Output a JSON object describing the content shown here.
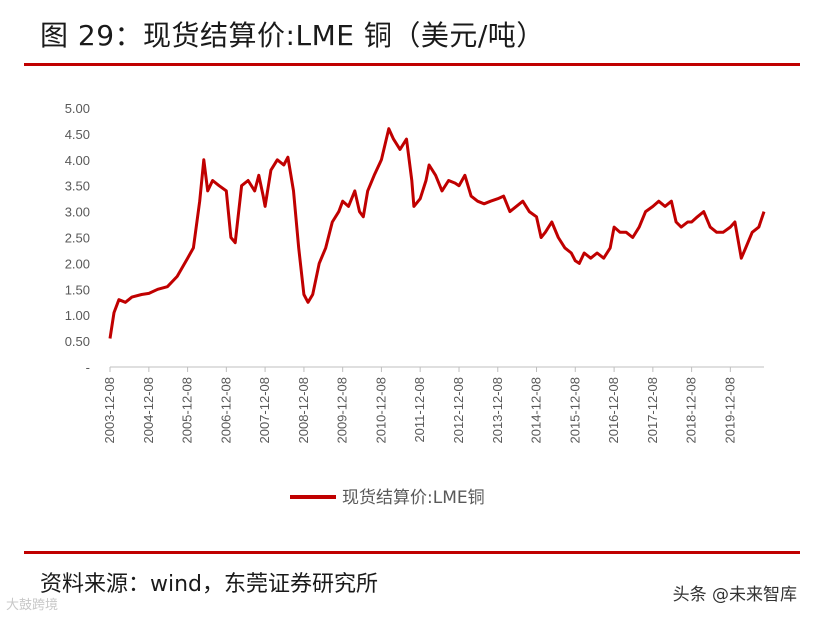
{
  "header": {
    "title": "图 29：现货结算价:LME 铜（美元/吨）"
  },
  "footer": {
    "source": "资料来源：wind，东莞证券研究所"
  },
  "watermarks": {
    "right": "头条 @未来智库",
    "left": "大鼓跨境"
  },
  "colors": {
    "accent": "#c00000",
    "series": "#c00000"
  },
  "chart_data": {
    "type": "line",
    "title": "",
    "xlabel": "",
    "ylabel": "",
    "ylim": [
      0,
      5
    ],
    "y_ticks": [
      "-",
      "0.50",
      "1.00",
      "1.50",
      "2.00",
      "2.50",
      "3.00",
      "3.50",
      "4.00",
      "4.50",
      "5.00"
    ],
    "x_ticks": [
      "2003-12-08",
      "2004-12-08",
      "2005-12-08",
      "2006-12-08",
      "2007-12-08",
      "2008-12-08",
      "2009-12-08",
      "2010-12-08",
      "2011-12-08",
      "2012-12-08",
      "2013-12-08",
      "2014-12-08",
      "2015-12-08",
      "2016-12-08",
      "2017-12-08",
      "2018-12-08",
      "2019-12-08"
    ],
    "legend": "bottom",
    "grid": false,
    "series": [
      {
        "name": "现货结算价:LME铜",
        "points": [
          [
            "2003-12-08",
            0.55
          ],
          [
            "2004-01-15",
            1.05
          ],
          [
            "2004-03-01",
            1.3
          ],
          [
            "2004-05-01",
            1.25
          ],
          [
            "2004-07-01",
            1.35
          ],
          [
            "2004-10-01",
            1.4
          ],
          [
            "2004-12-08",
            1.42
          ],
          [
            "2005-03-01",
            1.5
          ],
          [
            "2005-06-01",
            1.55
          ],
          [
            "2005-09-01",
            1.75
          ],
          [
            "2005-12-08",
            2.1
          ],
          [
            "2006-02-01",
            2.3
          ],
          [
            "2006-04-01",
            3.2
          ],
          [
            "2006-05-10",
            4.0
          ],
          [
            "2006-06-15",
            3.4
          ],
          [
            "2006-08-01",
            3.6
          ],
          [
            "2006-10-01",
            3.5
          ],
          [
            "2006-12-08",
            3.4
          ],
          [
            "2007-01-20",
            2.5
          ],
          [
            "2007-03-01",
            2.4
          ],
          [
            "2007-05-01",
            3.5
          ],
          [
            "2007-07-01",
            3.6
          ],
          [
            "2007-09-01",
            3.4
          ],
          [
            "2007-10-10",
            3.7
          ],
          [
            "2007-11-20",
            3.3
          ],
          [
            "2007-12-08",
            3.1
          ],
          [
            "2008-02-01",
            3.8
          ],
          [
            "2008-04-01",
            4.0
          ],
          [
            "2008-06-01",
            3.9
          ],
          [
            "2008-07-10",
            4.05
          ],
          [
            "2008-09-01",
            3.4
          ],
          [
            "2008-10-20",
            2.3
          ],
          [
            "2008-12-08",
            1.4
          ],
          [
            "2009-01-15",
            1.25
          ],
          [
            "2009-03-01",
            1.4
          ],
          [
            "2009-05-01",
            2.0
          ],
          [
            "2009-07-01",
            2.3
          ],
          [
            "2009-09-01",
            2.8
          ],
          [
            "2009-11-01",
            3.0
          ],
          [
            "2009-12-08",
            3.2
          ],
          [
            "2010-02-01",
            3.1
          ],
          [
            "2010-04-01",
            3.4
          ],
          [
            "2010-05-15",
            3.0
          ],
          [
            "2010-06-20",
            2.9
          ],
          [
            "2010-08-01",
            3.4
          ],
          [
            "2010-10-01",
            3.7
          ],
          [
            "2010-12-08",
            4.0
          ],
          [
            "2011-02-15",
            4.6
          ],
          [
            "2011-04-01",
            4.4
          ],
          [
            "2011-06-01",
            4.2
          ],
          [
            "2011-08-01",
            4.4
          ],
          [
            "2011-09-20",
            3.6
          ],
          [
            "2011-10-10",
            3.1
          ],
          [
            "2011-12-08",
            3.25
          ],
          [
            "2012-02-01",
            3.6
          ],
          [
            "2012-03-01",
            3.9
          ],
          [
            "2012-05-01",
            3.7
          ],
          [
            "2012-07-01",
            3.4
          ],
          [
            "2012-09-01",
            3.6
          ],
          [
            "2012-11-01",
            3.55
          ],
          [
            "2012-12-08",
            3.5
          ],
          [
            "2013-02-01",
            3.7
          ],
          [
            "2013-04-01",
            3.3
          ],
          [
            "2013-06-01",
            3.2
          ],
          [
            "2013-08-01",
            3.15
          ],
          [
            "2013-10-01",
            3.2
          ],
          [
            "2013-12-08",
            3.25
          ],
          [
            "2014-02-01",
            3.3
          ],
          [
            "2014-04-01",
            3.0
          ],
          [
            "2014-06-01",
            3.1
          ],
          [
            "2014-08-01",
            3.2
          ],
          [
            "2014-10-01",
            3.0
          ],
          [
            "2014-12-08",
            2.9
          ],
          [
            "2015-01-20",
            2.5
          ],
          [
            "2015-03-01",
            2.6
          ],
          [
            "2015-05-01",
            2.8
          ],
          [
            "2015-07-01",
            2.5
          ],
          [
            "2015-09-01",
            2.3
          ],
          [
            "2015-11-01",
            2.2
          ],
          [
            "2015-12-08",
            2.05
          ],
          [
            "2016-01-15",
            2.0
          ],
          [
            "2016-03-01",
            2.2
          ],
          [
            "2016-05-01",
            2.1
          ],
          [
            "2016-07-01",
            2.2
          ],
          [
            "2016-09-01",
            2.1
          ],
          [
            "2016-11-01",
            2.3
          ],
          [
            "2016-12-08",
            2.7
          ],
          [
            "2017-02-01",
            2.6
          ],
          [
            "2017-04-01",
            2.6
          ],
          [
            "2017-06-01",
            2.5
          ],
          [
            "2017-08-01",
            2.7
          ],
          [
            "2017-10-01",
            3.0
          ],
          [
            "2017-12-08",
            3.1
          ],
          [
            "2018-02-01",
            3.2
          ],
          [
            "2018-04-01",
            3.1
          ],
          [
            "2018-06-01",
            3.2
          ],
          [
            "2018-07-15",
            2.8
          ],
          [
            "2018-09-01",
            2.7
          ],
          [
            "2018-11-01",
            2.8
          ],
          [
            "2018-12-08",
            2.8
          ],
          [
            "2019-02-01",
            2.9
          ],
          [
            "2019-04-01",
            3.0
          ],
          [
            "2019-06-01",
            2.7
          ],
          [
            "2019-08-01",
            2.6
          ],
          [
            "2019-10-01",
            2.6
          ],
          [
            "2019-12-08",
            2.7
          ],
          [
            "2020-01-20",
            2.8
          ],
          [
            "2020-03-20",
            2.1
          ],
          [
            "2020-05-01",
            2.3
          ],
          [
            "2020-07-01",
            2.6
          ],
          [
            "2020-09-01",
            2.7
          ],
          [
            "2020-10-20",
            3.0
          ]
        ]
      }
    ]
  }
}
